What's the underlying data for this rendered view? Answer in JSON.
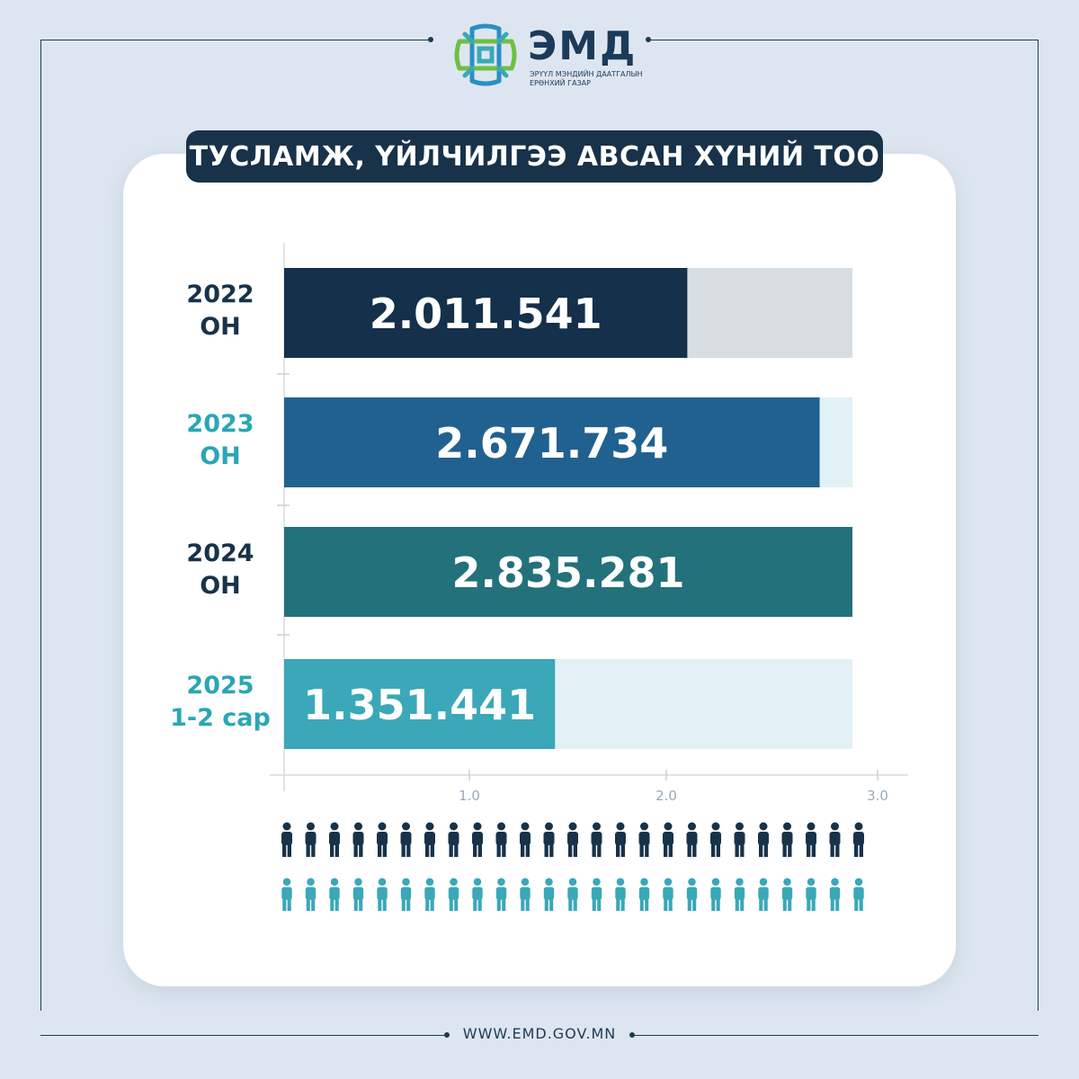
{
  "brand": {
    "name": "ЭМД",
    "subtitle_line1": "ЭРҮҮЛ МЭНДИЙН ДААТГАЛЫН",
    "subtitle_line2": "ЕРӨНХИЙ ГАЗАР"
  },
  "title": "ТУСЛАМЖ, ҮЙЛЧИЛГЭЭ АВСАН ХҮНИЙ ТОО",
  "footer_url": "WWW.EMD.GOV.MN",
  "colors": {
    "background": "#dde6f0",
    "navy": "#18324a",
    "teal": "#3aa8b8"
  },
  "chart_data": {
    "type": "bar",
    "orientation": "horizontal",
    "categories": [
      {
        "line1": "2022",
        "line2": "ОН",
        "label_color": "#18324a"
      },
      {
        "line1": "2023",
        "line2": "ОН",
        "label_color": "#2aa6b4"
      },
      {
        "line1": "2024",
        "line2": "ОН",
        "label_color": "#18324a"
      },
      {
        "line1": "2025",
        "line2": "1-2 сар",
        "label_color": "#2aa6b4"
      }
    ],
    "values": [
      2011541,
      2671734,
      2835281,
      1351441
    ],
    "value_labels": [
      "2.011.541",
      "2.671.734",
      "2.835.281",
      "1.351.441"
    ],
    "bar_colors": [
      "#14304a",
      "#21618f",
      "#23717a",
      "#3aa8b8"
    ],
    "track_colors": [
      "#d8dde1",
      "#e1f1f5",
      "#e1f1f5",
      "#e1f1f5"
    ],
    "xticks": [
      "1.0",
      "2.0",
      "3.0"
    ],
    "grid": false
  },
  "pictogram": {
    "top_row_count": 25,
    "bottom_row_count": 25,
    "top_color": "#18324a",
    "bottom_color": "#3aa8b8"
  }
}
